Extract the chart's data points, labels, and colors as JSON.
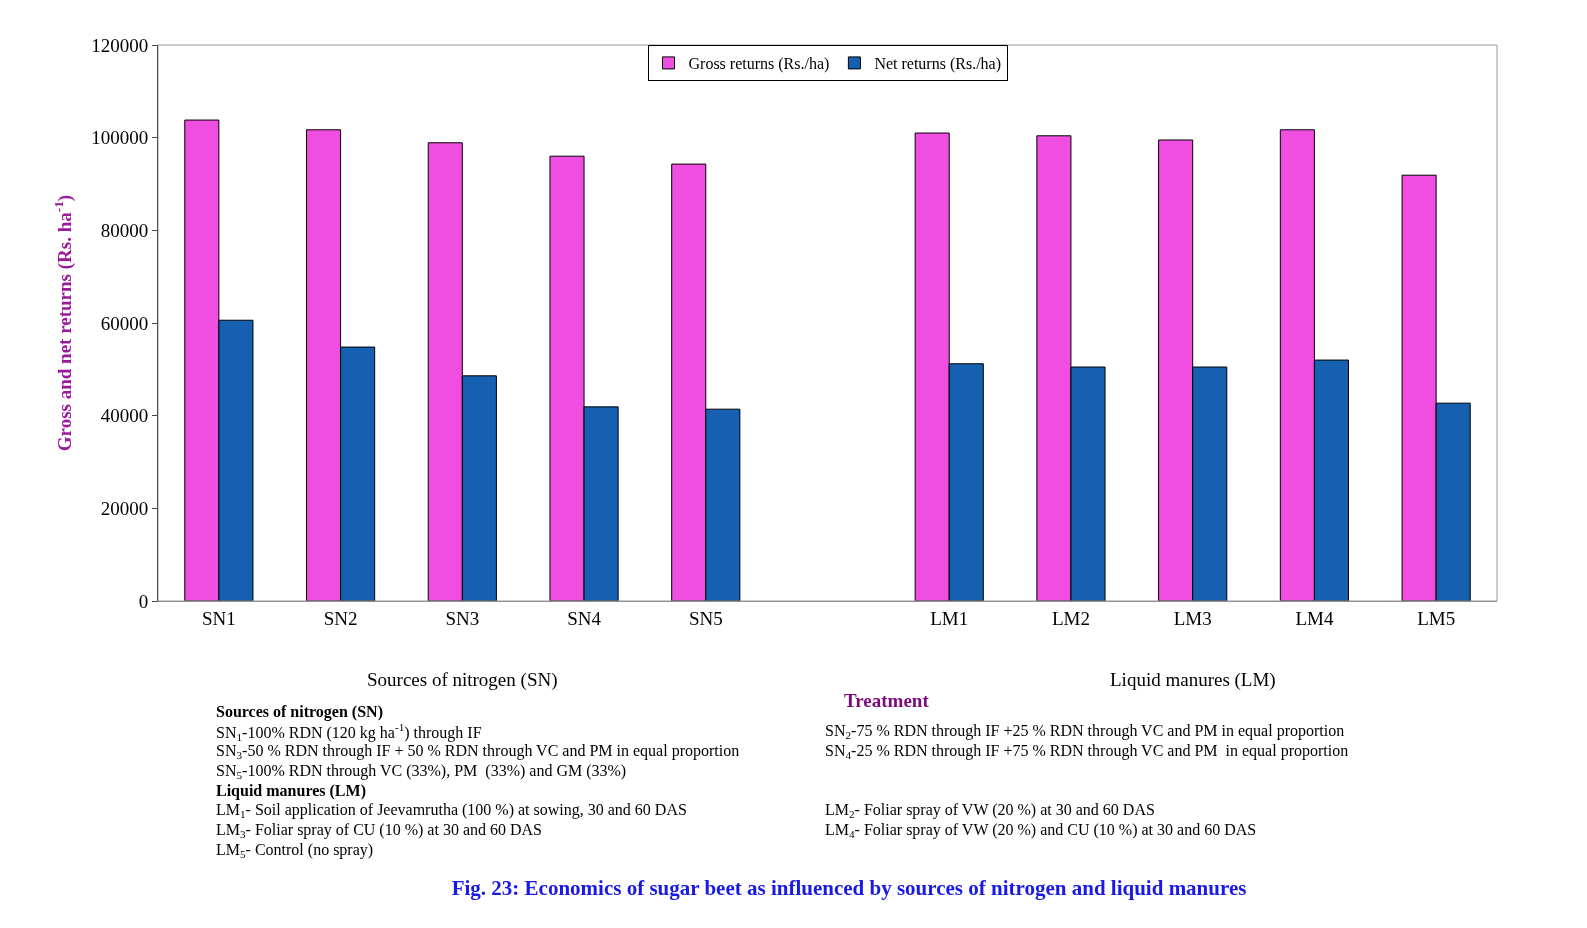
{
  "chart_data": {
    "type": "bar",
    "title": "Fig. 23: Economics of sugar beet as influenced by sources of nitrogen and liquid manures",
    "xlabel": "Treatment",
    "ylabel": "Gross and net returns (Rs. ha$^{-1}$)",
    "categories": [
      "SN1",
      "SN2",
      "SN3",
      "SN4",
      "SN5",
      null,
      "LM1",
      "LM2",
      "LM3",
      "LM4",
      "LM5"
    ],
    "series": [
      {
        "name": "Gross returns (Rs./ha)",
        "color": "#f04ee0",
        "values": [
          103800,
          101700,
          98900,
          96000,
          94300,
          null,
          101000,
          100400,
          99500,
          101700,
          91900
        ]
      },
      {
        "name": "Net returns (Rs./ha)",
        "color": "#1560b0",
        "values": [
          60600,
          54800,
          48600,
          41900,
          41400,
          null,
          51200,
          50500,
          50500,
          52000,
          42700
        ]
      }
    ],
    "ylim": [
      0,
      120000
    ],
    "yticks": [
      0,
      20000,
      40000,
      60000,
      80000,
      100000,
      120000
    ],
    "grid": false,
    "legend": "top",
    "annotations": [
      "Sources of nitrogen (SN)",
      "Liquid manures (LM)",
      "Sources of nitrogen (SN)",
      "SN$_{1}$-100% RDN (120 kg ha$^{-1}$) through IF",
      "SN$_{2}$-75 % RDN through IF +25 % RDN through VC and PM in equal proportion",
      "SN$_{3}$-50 % RDN through IF + 50 % RDN through VC and PM in equal proportion",
      "SN$_{4}$-25 % RDN through IF +75 % RDN through VC and PM  in equal proportion",
      "SN$_{5}$-100% RDN through VC (33%), PM  (33%) and GM (33%)",
      "Liquid manures (LM)",
      "LM$_{1}$- Soil application of Jeevamrutha (100 %) at sowing, 30 and 60 DAS",
      "LM$_{2}$- Foliar spray of VW (20 %) at 30 and 60 DAS",
      "LM$_{3}$- Foliar spray of CU (10 %) at 30 and 60 DAS",
      "LM$_{4}$- Foliar spray of VW (20 %) and CU (10 %) at 30 and 60 DAS",
      "LM$_{5}$- Control (no spray)"
    ]
  }
}
